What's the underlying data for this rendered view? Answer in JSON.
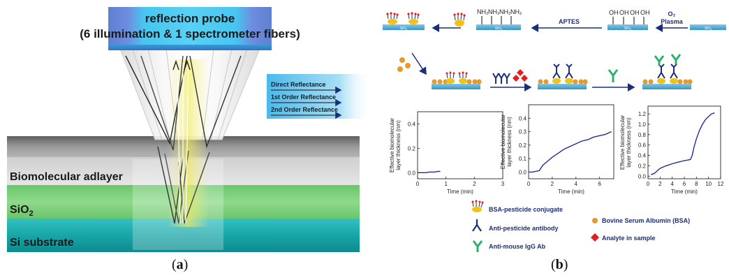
{
  "panel_a": {
    "probe_title_line1": "reflection probe",
    "probe_title_line2": "(6 illumination & 1 spectrometer fibers)",
    "legend": [
      "Direct Reflectance",
      "1st Order Reflectance",
      "2nd Order Reflectance"
    ],
    "layers": {
      "biomolecular": "Biomolecular adlayer",
      "sio2": "SiO",
      "sio2_sub": "2",
      "si": "Si substrate"
    },
    "caption_open": "(",
    "caption_letter": "a",
    "caption_close": ")"
  },
  "panel_b": {
    "sio2_label": "SiO",
    "sio2_sub": "2",
    "nh2_labels": [
      "NH₂",
      "NH₂",
      "NH₂",
      "NH₂"
    ],
    "oh_labels": [
      "OH",
      "OH",
      "OH",
      "OH"
    ],
    "aptes": "APTES",
    "o2_label": "O₂",
    "plasma_label": "Plasma",
    "legend": {
      "bsa_pesticide": "BSA-pesticide conjugate",
      "bsa": "Bovine Serum Albumin (BSA)",
      "anti_pesticide": "Anti-pesticide antibody",
      "anti_mouse": "Anti-mouse IgG Ab",
      "analyte": "Analyte in sample"
    },
    "caption_open": "(",
    "caption_letter": "b",
    "caption_close": ")"
  },
  "chart_data": [
    {
      "type": "line",
      "xlabel": "Time (min)",
      "ylabel": "Effective biomolecular layer thickness (nm)",
      "xlim": [
        0,
        3
      ],
      "ylim": [
        -0.05,
        0.5
      ],
      "xticks": [
        "0",
        "1",
        "2",
        "3"
      ],
      "yticks": [
        "0.0",
        "0.2",
        "0.4"
      ],
      "ytick_values": [
        0,
        0.2,
        0.4
      ],
      "x": [
        0,
        0.1,
        0.2,
        0.3,
        0.4,
        0.5,
        0.6,
        0.7,
        0.8
      ],
      "y": [
        0.0,
        0.0,
        0.0,
        0.0,
        0.005,
        0.005,
        0.005,
        0.01,
        0.01
      ]
    },
    {
      "type": "line",
      "xlabel": "Time (min)",
      "ylabel": "Effective biomolecular layer thickness (nm)",
      "xlim": [
        0,
        7.2
      ],
      "ylim": [
        -0.05,
        0.5
      ],
      "xticks": [
        "0",
        "2",
        "4",
        "6"
      ],
      "yticks": [
        "0.0",
        "0.1",
        "0.2",
        "0.3",
        "0.4"
      ],
      "ytick_values": [
        0,
        0.1,
        0.2,
        0.3,
        0.4
      ],
      "x": [
        0,
        0.3,
        0.6,
        0.9,
        1.2,
        1.6,
        2.0,
        2.5,
        3.0,
        3.5,
        4.0,
        4.5,
        5.0,
        5.5,
        6.0,
        6.5,
        7.0
      ],
      "y": [
        0.0,
        0.0,
        0.005,
        0.01,
        0.05,
        0.08,
        0.11,
        0.14,
        0.17,
        0.19,
        0.21,
        0.23,
        0.24,
        0.26,
        0.27,
        0.28,
        0.3
      ]
    },
    {
      "type": "line",
      "xlabel": "Time (min)",
      "ylabel": "Effective biomolecular layer thickness (nm)",
      "xlim": [
        0,
        12
      ],
      "ylim": [
        -0.05,
        1.35
      ],
      "xticks": [
        "0",
        "2",
        "4",
        "6",
        "8",
        "10",
        "12"
      ],
      "yticks": [
        "0.0",
        "0.2",
        "0.4",
        "0.6",
        "0.8",
        "1.0",
        "1.2"
      ],
      "ytick_values": [
        0,
        0.2,
        0.4,
        0.6,
        0.8,
        1.0,
        1.2
      ],
      "x": [
        0.5,
        1.0,
        1.5,
        2.0,
        3.0,
        4.0,
        5.0,
        6.0,
        6.5,
        7.0,
        7.3,
        7.6,
        8.0,
        8.5,
        9.0,
        9.5,
        10.0,
        10.5,
        11.0
      ],
      "y": [
        0.03,
        0.05,
        0.1,
        0.15,
        0.2,
        0.24,
        0.27,
        0.3,
        0.31,
        0.32,
        0.4,
        0.56,
        0.72,
        0.88,
        1.0,
        1.09,
        1.15,
        1.2,
        1.22
      ]
    }
  ]
}
